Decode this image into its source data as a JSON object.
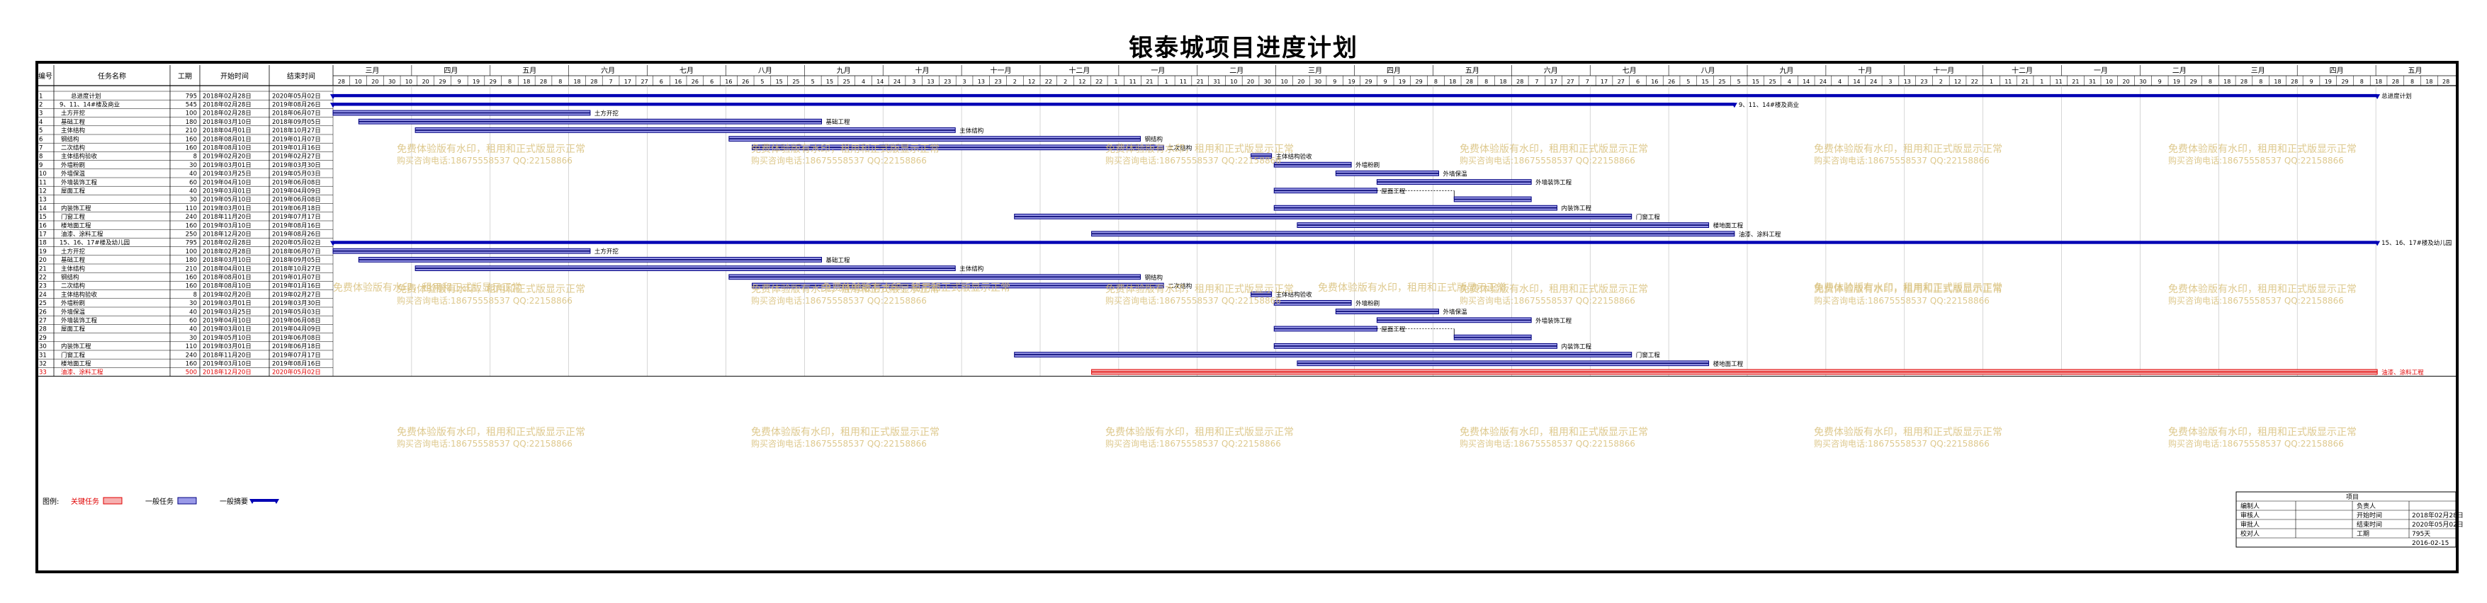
{
  "title": "银泰城项目进度计划",
  "columns": {
    "id": "编号",
    "name": "任务名称",
    "duration": "工期",
    "start": "开始时间",
    "finish": "结束时间"
  },
  "months": [
    "三月",
    "四月",
    "五月",
    "六月",
    "七月",
    "八月",
    "九月",
    "十月",
    "十一月",
    "十二月",
    "一月",
    "二月",
    "三月",
    "四月",
    "五月",
    "六月",
    "七月",
    "八月",
    "九月",
    "十月",
    "十一月",
    "十二月",
    "一月",
    "二月",
    "三月",
    "四月",
    "五月"
  ],
  "day_ticks": [
    "28",
    "10",
    "20",
    "30",
    "10",
    "20",
    "29",
    "9",
    "19",
    "29",
    "8",
    "18",
    "28",
    "8",
    "18",
    "28",
    "7",
    "17",
    "27",
    "6",
    "16",
    "26",
    "6",
    "16",
    "26",
    "5",
    "15",
    "25",
    "5",
    "15",
    "25",
    "4",
    "14",
    "24",
    "3",
    "13",
    "23",
    "3",
    "13",
    "23",
    "2",
    "12",
    "22",
    "2",
    "12",
    "22",
    "1",
    "11",
    "21",
    "1",
    "11",
    "21",
    "31",
    "10",
    "20",
    "30",
    "10",
    "20",
    "30",
    "9",
    "19",
    "29",
    "9",
    "19",
    "29",
    "8",
    "18",
    "28",
    "8",
    "18",
    "28",
    "7",
    "17",
    "27",
    "7",
    "17",
    "27",
    "6",
    "16",
    "26",
    "5",
    "15",
    "25",
    "5",
    "15",
    "25",
    "4",
    "14",
    "24",
    "4",
    "14",
    "24",
    "3",
    "13",
    "23",
    "2",
    "12",
    "22",
    "1",
    "11",
    "21",
    "1",
    "11",
    "21",
    "31",
    "10",
    "20",
    "30",
    "9",
    "19",
    "29",
    "8",
    "18",
    "28",
    "8",
    "18",
    "28",
    "9",
    "19",
    "29",
    "8",
    "18",
    "28",
    "8",
    "18",
    "28"
  ],
  "tasks": [
    {
      "id": "1",
      "name": "总进度计划",
      "duration": "795",
      "start": "2018年02月28日",
      "finish": "2020年05月02日",
      "type": "summary",
      "s": 0,
      "e": 795,
      "label": "总进度计划"
    },
    {
      "id": "2",
      "name": "9、11、14#楼及商业",
      "duration": "545",
      "start": "2018年02月28日",
      "finish": "2019年08月26日",
      "type": "summary",
      "s": 0,
      "e": 545,
      "label": "9、11、14#楼及商业"
    },
    {
      "id": "3",
      "name": "土方开挖",
      "duration": "100",
      "start": "2018年02月28日",
      "finish": "2018年06月07日",
      "type": "task",
      "s": 0,
      "e": 100,
      "label": "土方开挖"
    },
    {
      "id": "4",
      "name": "基础工程",
      "duration": "180",
      "start": "2018年03月10日",
      "finish": "2018年09月05日",
      "type": "task",
      "s": 10,
      "e": 190,
      "label": "基础工程"
    },
    {
      "id": "5",
      "name": "主体结构",
      "duration": "210",
      "start": "2018年04月01日",
      "finish": "2018年10月27日",
      "type": "task",
      "s": 32,
      "e": 242,
      "label": "主体结构"
    },
    {
      "id": "6",
      "name": "钢结构",
      "duration": "160",
      "start": "2018年08月01日",
      "finish": "2019年01月07日",
      "type": "task",
      "s": 154,
      "e": 314,
      "label": "钢结构"
    },
    {
      "id": "7",
      "name": "二次结构",
      "duration": "160",
      "start": "2018年08月10日",
      "finish": "2019年01月16日",
      "type": "task",
      "s": 163,
      "e": 323,
      "label": "二次结构"
    },
    {
      "id": "8",
      "name": "主体结构验收",
      "duration": "8",
      "start": "2019年02月20日",
      "finish": "2019年02月27日",
      "type": "task",
      "s": 357,
      "e": 365,
      "label": "主体结构验收"
    },
    {
      "id": "9",
      "name": "外墙粉刷",
      "duration": "30",
      "start": "2019年03月01日",
      "finish": "2019年03月30日",
      "type": "task",
      "s": 366,
      "e": 396,
      "label": "外墙粉刷"
    },
    {
      "id": "10",
      "name": "外墙保温",
      "duration": "40",
      "start": "2019年03月25日",
      "finish": "2019年05月03日",
      "type": "task",
      "s": 390,
      "e": 430,
      "label": "外墙保温"
    },
    {
      "id": "11",
      "name": "外墙装饰工程",
      "duration": "60",
      "start": "2019年04月10日",
      "finish": "2019年06月08日",
      "type": "task",
      "s": 406,
      "e": 466,
      "label": "外墙装饰工程"
    },
    {
      "id": "12",
      "name": "屋面工程",
      "duration": "40",
      "start": "2019年03月01日",
      "finish": "2019年04月09日",
      "type": "split",
      "s": 366,
      "e": 406,
      "label": "屋面工程"
    },
    {
      "id": "13",
      "name": "",
      "duration": "30",
      "start": "2019年05月10日",
      "finish": "2019年06月08日",
      "type": "task",
      "s": 436,
      "e": 466,
      "label": ""
    },
    {
      "id": "14",
      "name": "内装饰工程",
      "duration": "110",
      "start": "2019年03月01日",
      "finish": "2019年06月18日",
      "type": "task",
      "s": 366,
      "e": 476,
      "label": "内装饰工程"
    },
    {
      "id": "15",
      "name": "门窗工程",
      "duration": "240",
      "start": "2018年11月20日",
      "finish": "2019年07月17日",
      "type": "task",
      "s": 265,
      "e": 505,
      "label": "门窗工程"
    },
    {
      "id": "16",
      "name": "楼地面工程",
      "duration": "160",
      "start": "2019年03月10日",
      "finish": "2019年08月16日",
      "type": "task",
      "s": 375,
      "e": 535,
      "label": "楼地面工程"
    },
    {
      "id": "17",
      "name": "油漆、涂料工程",
      "duration": "250",
      "start": "2018年12月20日",
      "finish": "2019年08月26日",
      "type": "task",
      "s": 295,
      "e": 545,
      "label": "油漆、涂料工程"
    },
    {
      "id": "18",
      "name": "15、16、17#楼及幼儿园",
      "duration": "795",
      "start": "2018年02月28日",
      "finish": "2020年05月02日",
      "type": "summary",
      "s": 0,
      "e": 795,
      "label": "15、16、17#楼及幼儿园"
    },
    {
      "id": "19",
      "name": "土方开挖",
      "duration": "100",
      "start": "2018年02月28日",
      "finish": "2018年06月07日",
      "type": "task",
      "s": 0,
      "e": 100,
      "label": "土方开挖"
    },
    {
      "id": "20",
      "name": "基础工程",
      "duration": "180",
      "start": "2018年03月10日",
      "finish": "2018年09月05日",
      "type": "task",
      "s": 10,
      "e": 190,
      "label": "基础工程"
    },
    {
      "id": "21",
      "name": "主体结构",
      "duration": "210",
      "start": "2018年04月01日",
      "finish": "2018年10月27日",
      "type": "task",
      "s": 32,
      "e": 242,
      "label": "主体结构"
    },
    {
      "id": "22",
      "name": "钢结构",
      "duration": "160",
      "start": "2018年08月01日",
      "finish": "2019年01月07日",
      "type": "task",
      "s": 154,
      "e": 314,
      "label": "钢结构"
    },
    {
      "id": "23",
      "name": "二次结构",
      "duration": "160",
      "start": "2018年08月10日",
      "finish": "2019年01月16日",
      "type": "task",
      "s": 163,
      "e": 323,
      "label": "二次结构"
    },
    {
      "id": "24",
      "name": "主体结构验收",
      "duration": "8",
      "start": "2019年02月20日",
      "finish": "2019年02月27日",
      "type": "task",
      "s": 357,
      "e": 365,
      "label": "主体结构验收"
    },
    {
      "id": "25",
      "name": "外墙粉刷",
      "duration": "30",
      "start": "2019年03月01日",
      "finish": "2019年03月30日",
      "type": "task",
      "s": 366,
      "e": 396,
      "label": "外墙粉刷"
    },
    {
      "id": "26",
      "name": "外墙保温",
      "duration": "40",
      "start": "2019年03月25日",
      "finish": "2019年05月03日",
      "type": "task",
      "s": 390,
      "e": 430,
      "label": "外墙保温"
    },
    {
      "id": "27",
      "name": "外墙装饰工程",
      "duration": "60",
      "start": "2019年04月10日",
      "finish": "2019年06月08日",
      "type": "task",
      "s": 406,
      "e": 466,
      "label": "外墙装饰工程"
    },
    {
      "id": "28",
      "name": "屋面工程",
      "duration": "40",
      "start": "2019年03月01日",
      "finish": "2019年04月09日",
      "type": "split",
      "s": 366,
      "e": 406,
      "label": "屋面工程"
    },
    {
      "id": "29",
      "name": "",
      "duration": "30",
      "start": "2019年05月10日",
      "finish": "2019年06月08日",
      "type": "task",
      "s": 436,
      "e": 466,
      "label": ""
    },
    {
      "id": "30",
      "name": "内装饰工程",
      "duration": "110",
      "start": "2019年03月01日",
      "finish": "2019年06月18日",
      "type": "task",
      "s": 366,
      "e": 476,
      "label": "内装饰工程"
    },
    {
      "id": "31",
      "name": "门窗工程",
      "duration": "240",
      "start": "2018年11月20日",
      "finish": "2019年07月17日",
      "type": "task",
      "s": 265,
      "e": 505,
      "label": "门窗工程"
    },
    {
      "id": "32",
      "name": "楼地面工程",
      "duration": "160",
      "start": "2019年03月10日",
      "finish": "2019年08月16日",
      "type": "task",
      "s": 375,
      "e": 535,
      "label": "楼地面工程"
    },
    {
      "id": "33",
      "name": "油漆、涂料工程",
      "duration": "500",
      "start": "2018年12月20日",
      "finish": "2020年05月02日",
      "type": "critical",
      "s": 295,
      "e": 795,
      "label": "油漆、涂料工程"
    }
  ],
  "watermark": {
    "line1": "免费体验版有水印，租用和正式版显示正常",
    "line2": "购买咨询电话:18675558537 QQ:22158866"
  },
  "legend": {
    "label": "图例:",
    "critical": "关键任务",
    "normal": "一般任务",
    "summary": "一般摘要"
  },
  "info": {
    "header": "项目",
    "rows": [
      {
        "k1": "编制人",
        "v1": "",
        "k2": "负责人",
        "v2": ""
      },
      {
        "k1": "审核人",
        "v1": "",
        "k2": "开始时间",
        "v2": "2018年02月28日"
      },
      {
        "k1": "审批人",
        "v1": "",
        "k2": "结束时间",
        "v2": "2020年05月02日"
      },
      {
        "k1": "校对人",
        "v1": "",
        "k2": "工期",
        "v2": "795天"
      }
    ],
    "date": "2016-02-15"
  },
  "colors": {
    "summary": "#0000b4",
    "task": "#4a4ad8",
    "critical": "#e00000",
    "critical_text": "#e00000",
    "watermark": "#d8c07a",
    "grid": "#bbbbbb"
  }
}
